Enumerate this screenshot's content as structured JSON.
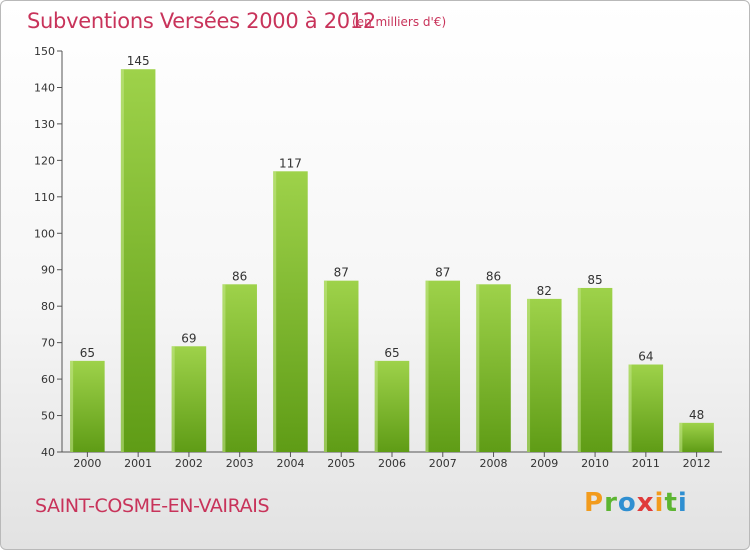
{
  "header": {
    "title": "Subventions Versées 2000 à 2012",
    "unit": "(en milliers d'€)"
  },
  "footer": {
    "place": "SAINT-COSME-EN-VAIRAIS",
    "logo": [
      "P",
      "r",
      "o",
      "x",
      "i",
      "t",
      "i"
    ],
    "logo_colors": [
      "#f29b1d",
      "#5cb531",
      "#2f8fd1",
      "#e03a3a",
      "#f29b1d",
      "#5cb531",
      "#2f8fd1"
    ]
  },
  "chart_data": {
    "type": "bar",
    "title": "Subventions Versées 2000 à 2012",
    "subtitle": "(en milliers d'€)",
    "categories": [
      "2000",
      "2001",
      "2002",
      "2003",
      "2004",
      "2005",
      "2006",
      "2007",
      "2008",
      "2009",
      "2010",
      "2011",
      "2012"
    ],
    "values": [
      65,
      145,
      69,
      86,
      117,
      87,
      65,
      87,
      86,
      82,
      85,
      64,
      48
    ],
    "ylim": [
      40,
      150
    ],
    "yticks": [
      40,
      50,
      60,
      70,
      80,
      90,
      100,
      110,
      120,
      130,
      140,
      150
    ],
    "grid": false,
    "bar_color_top": "#9ed24a",
    "bar_color_bottom": "#5f9c16"
  }
}
